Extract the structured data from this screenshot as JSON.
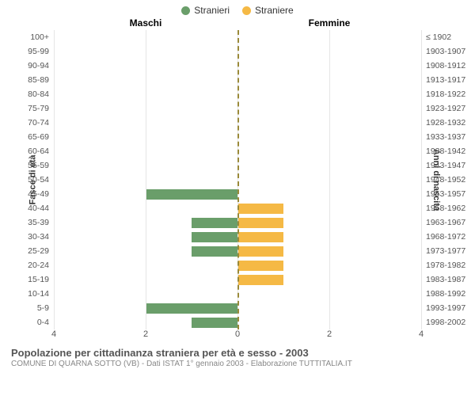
{
  "chart": {
    "type": "population-pyramid",
    "legend": {
      "male": {
        "label": "Stranieri",
        "color": "#6a9e6a"
      },
      "female": {
        "label": "Straniere",
        "color": "#f5b945"
      }
    },
    "column_headers": {
      "left": "Maschi",
      "right": "Femmine"
    },
    "y_axis_left_title": "Fasce di età",
    "y_axis_right_title": "Anni di nascita",
    "x_axis": {
      "max": 4,
      "ticks": [
        4,
        2,
        0,
        2,
        4
      ]
    },
    "center_line_color": "#9a8a3a",
    "grid_color": "#e5e5e5",
    "bar_height_ratio": 0.72,
    "rows": [
      {
        "age": "100+",
        "birth": "≤ 1902",
        "m": 0,
        "f": 0
      },
      {
        "age": "95-99",
        "birth": "1903-1907",
        "m": 0,
        "f": 0
      },
      {
        "age": "90-94",
        "birth": "1908-1912",
        "m": 0,
        "f": 0
      },
      {
        "age": "85-89",
        "birth": "1913-1917",
        "m": 0,
        "f": 0
      },
      {
        "age": "80-84",
        "birth": "1918-1922",
        "m": 0,
        "f": 0
      },
      {
        "age": "75-79",
        "birth": "1923-1927",
        "m": 0,
        "f": 0
      },
      {
        "age": "70-74",
        "birth": "1928-1932",
        "m": 0,
        "f": 0
      },
      {
        "age": "65-69",
        "birth": "1933-1937",
        "m": 0,
        "f": 0
      },
      {
        "age": "60-64",
        "birth": "1938-1942",
        "m": 0,
        "f": 0
      },
      {
        "age": "55-59",
        "birth": "1943-1947",
        "m": 0,
        "f": 0
      },
      {
        "age": "50-54",
        "birth": "1948-1952",
        "m": 0,
        "f": 0
      },
      {
        "age": "45-49",
        "birth": "1953-1957",
        "m": 2,
        "f": 0
      },
      {
        "age": "40-44",
        "birth": "1958-1962",
        "m": 0,
        "f": 1
      },
      {
        "age": "35-39",
        "birth": "1963-1967",
        "m": 1,
        "f": 1
      },
      {
        "age": "30-34",
        "birth": "1968-1972",
        "m": 1,
        "f": 1
      },
      {
        "age": "25-29",
        "birth": "1973-1977",
        "m": 1,
        "f": 1
      },
      {
        "age": "20-24",
        "birth": "1978-1982",
        "m": 0,
        "f": 1
      },
      {
        "age": "15-19",
        "birth": "1983-1987",
        "m": 0,
        "f": 1
      },
      {
        "age": "10-14",
        "birth": "1988-1992",
        "m": 0,
        "f": 0
      },
      {
        "age": "5-9",
        "birth": "1993-1997",
        "m": 2,
        "f": 0
      },
      {
        "age": "0-4",
        "birth": "1998-2002",
        "m": 1,
        "f": 0
      }
    ]
  },
  "footer": {
    "title": "Popolazione per cittadinanza straniera per età e sesso - 2003",
    "subtitle": "COMUNE DI QUARNA SOTTO (VB) - Dati ISTAT 1° gennaio 2003 - Elaborazione TUTTITALIA.IT"
  }
}
